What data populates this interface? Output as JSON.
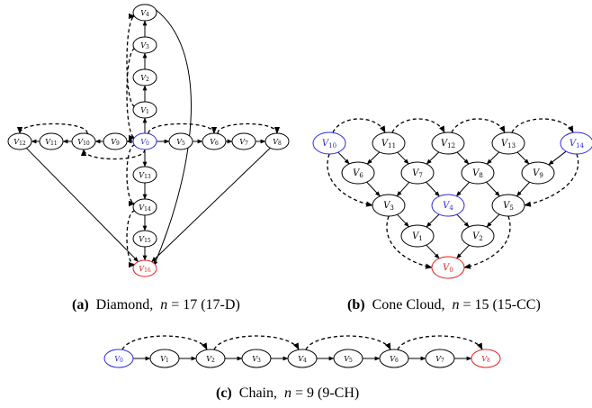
{
  "colors": {
    "default": "#000000",
    "source": "#2a2ae0",
    "sink": "#e02020"
  },
  "panels": [
    {
      "id": "diamond",
      "caption": {
        "tag": "(a)",
        "name": "Diamond,",
        "var": "n",
        "eq": " = 17 (17-D)"
      },
      "nodes": [
        {
          "label": "V",
          "sub": "4"
        },
        {
          "label": "V",
          "sub": "3"
        },
        {
          "label": "V",
          "sub": "2"
        },
        {
          "label": "V",
          "sub": "1"
        },
        {
          "label": "V",
          "sub": "0",
          "role": "source"
        },
        {
          "label": "V",
          "sub": "5"
        },
        {
          "label": "V",
          "sub": "6"
        },
        {
          "label": "V",
          "sub": "7"
        },
        {
          "label": "V",
          "sub": "8"
        },
        {
          "label": "V",
          "sub": "9"
        },
        {
          "label": "V",
          "sub": "10"
        },
        {
          "label": "V",
          "sub": "11"
        },
        {
          "label": "V",
          "sub": "12"
        },
        {
          "label": "V",
          "sub": "13"
        },
        {
          "label": "V",
          "sub": "14"
        },
        {
          "label": "V",
          "sub": "15"
        },
        {
          "label": "V",
          "sub": "16",
          "role": "sink"
        }
      ]
    },
    {
      "id": "cone-cloud",
      "caption": {
        "tag": "(b)",
        "name": "Cone Cloud,",
        "var": "n",
        "eq": " = 15 (15-CC)"
      },
      "nodes": [
        {
          "label": "V",
          "sub": "10",
          "role": "source"
        },
        {
          "label": "V",
          "sub": "11"
        },
        {
          "label": "V",
          "sub": "12"
        },
        {
          "label": "V",
          "sub": "13"
        },
        {
          "label": "V",
          "sub": "14",
          "role": "source"
        },
        {
          "label": "V",
          "sub": "6"
        },
        {
          "label": "V",
          "sub": "7"
        },
        {
          "label": "V",
          "sub": "8"
        },
        {
          "label": "V",
          "sub": "9"
        },
        {
          "label": "V",
          "sub": "3"
        },
        {
          "label": "V",
          "sub": "4",
          "role": "source"
        },
        {
          "label": "V",
          "sub": "5"
        },
        {
          "label": "V",
          "sub": "1"
        },
        {
          "label": "V",
          "sub": "2"
        },
        {
          "label": "V",
          "sub": "0",
          "role": "sink"
        }
      ]
    },
    {
      "id": "chain",
      "caption": {
        "tag": "(c)",
        "name": "Chain,",
        "var": "n",
        "eq": " = 9 (9-CH)"
      },
      "nodes": [
        {
          "label": "V",
          "sub": "0",
          "role": "source"
        },
        {
          "label": "V",
          "sub": "1"
        },
        {
          "label": "V",
          "sub": "2"
        },
        {
          "label": "V",
          "sub": "3"
        },
        {
          "label": "V",
          "sub": "4"
        },
        {
          "label": "V",
          "sub": "5"
        },
        {
          "label": "V",
          "sub": "6"
        },
        {
          "label": "V",
          "sub": "7"
        },
        {
          "label": "V",
          "sub": "8",
          "role": "sink"
        }
      ]
    }
  ]
}
